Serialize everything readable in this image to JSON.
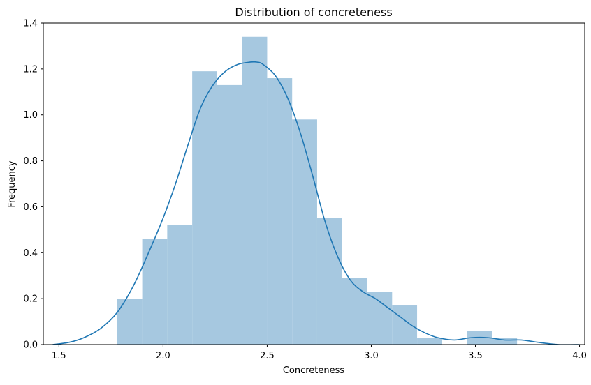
{
  "chart_data": {
    "type": "histogram",
    "title": "Distribution of concreteness",
    "xlabel": "Concreteness",
    "ylabel": "Frequency",
    "xlim": [
      1.425,
      4.025
    ],
    "ylim": [
      0,
      1.4
    ],
    "xticks": [
      "1.5",
      "2.0",
      "2.5",
      "3.0",
      "3.5",
      "4.0"
    ],
    "yticks": [
      "0.0",
      "0.2",
      "0.4",
      "0.6",
      "0.8",
      "1.0",
      "1.2",
      "1.4"
    ],
    "grid": false,
    "bar_color": "#a6c8e0",
    "line_color": "#1f77b4",
    "bins": [
      {
        "x0": 1.78,
        "x1": 1.9,
        "value": 0.2
      },
      {
        "x0": 1.9,
        "x1": 2.02,
        "value": 0.46
      },
      {
        "x0": 2.02,
        "x1": 2.14,
        "value": 0.52
      },
      {
        "x0": 2.14,
        "x1": 2.26,
        "value": 1.19
      },
      {
        "x0": 2.26,
        "x1": 2.38,
        "value": 1.13
      },
      {
        "x0": 2.38,
        "x1": 2.5,
        "value": 1.34
      },
      {
        "x0": 2.5,
        "x1": 2.62,
        "value": 1.16
      },
      {
        "x0": 2.62,
        "x1": 2.74,
        "value": 0.98
      },
      {
        "x0": 2.74,
        "x1": 2.86,
        "value": 0.55
      },
      {
        "x0": 2.86,
        "x1": 2.98,
        "value": 0.29
      },
      {
        "x0": 2.98,
        "x1": 3.1,
        "value": 0.23
      },
      {
        "x0": 3.1,
        "x1": 3.22,
        "value": 0.17
      },
      {
        "x0": 3.22,
        "x1": 3.34,
        "value": 0.03
      },
      {
        "x0": 3.34,
        "x1": 3.46,
        "value": 0.0
      },
      {
        "x0": 3.46,
        "x1": 3.58,
        "value": 0.06
      },
      {
        "x0": 3.58,
        "x1": 3.7,
        "value": 0.03
      }
    ],
    "kde": {
      "x": [
        1.47,
        1.55,
        1.62,
        1.7,
        1.78,
        1.86,
        1.94,
        2.0,
        2.06,
        2.12,
        2.18,
        2.24,
        2.3,
        2.36,
        2.42,
        2.45,
        2.48,
        2.54,
        2.6,
        2.66,
        2.72,
        2.78,
        2.84,
        2.9,
        2.96,
        3.02,
        3.08,
        3.14,
        3.2,
        3.26,
        3.32,
        3.4,
        3.48,
        3.56,
        3.64,
        3.72,
        3.8,
        3.9,
        4.0
      ],
      "y": [
        0.0,
        0.01,
        0.03,
        0.07,
        0.14,
        0.26,
        0.42,
        0.55,
        0.7,
        0.87,
        1.03,
        1.13,
        1.19,
        1.22,
        1.23,
        1.23,
        1.22,
        1.17,
        1.07,
        0.92,
        0.73,
        0.53,
        0.38,
        0.28,
        0.23,
        0.2,
        0.16,
        0.12,
        0.08,
        0.05,
        0.03,
        0.02,
        0.03,
        0.03,
        0.02,
        0.02,
        0.01,
        0.0,
        0.0
      ]
    }
  }
}
